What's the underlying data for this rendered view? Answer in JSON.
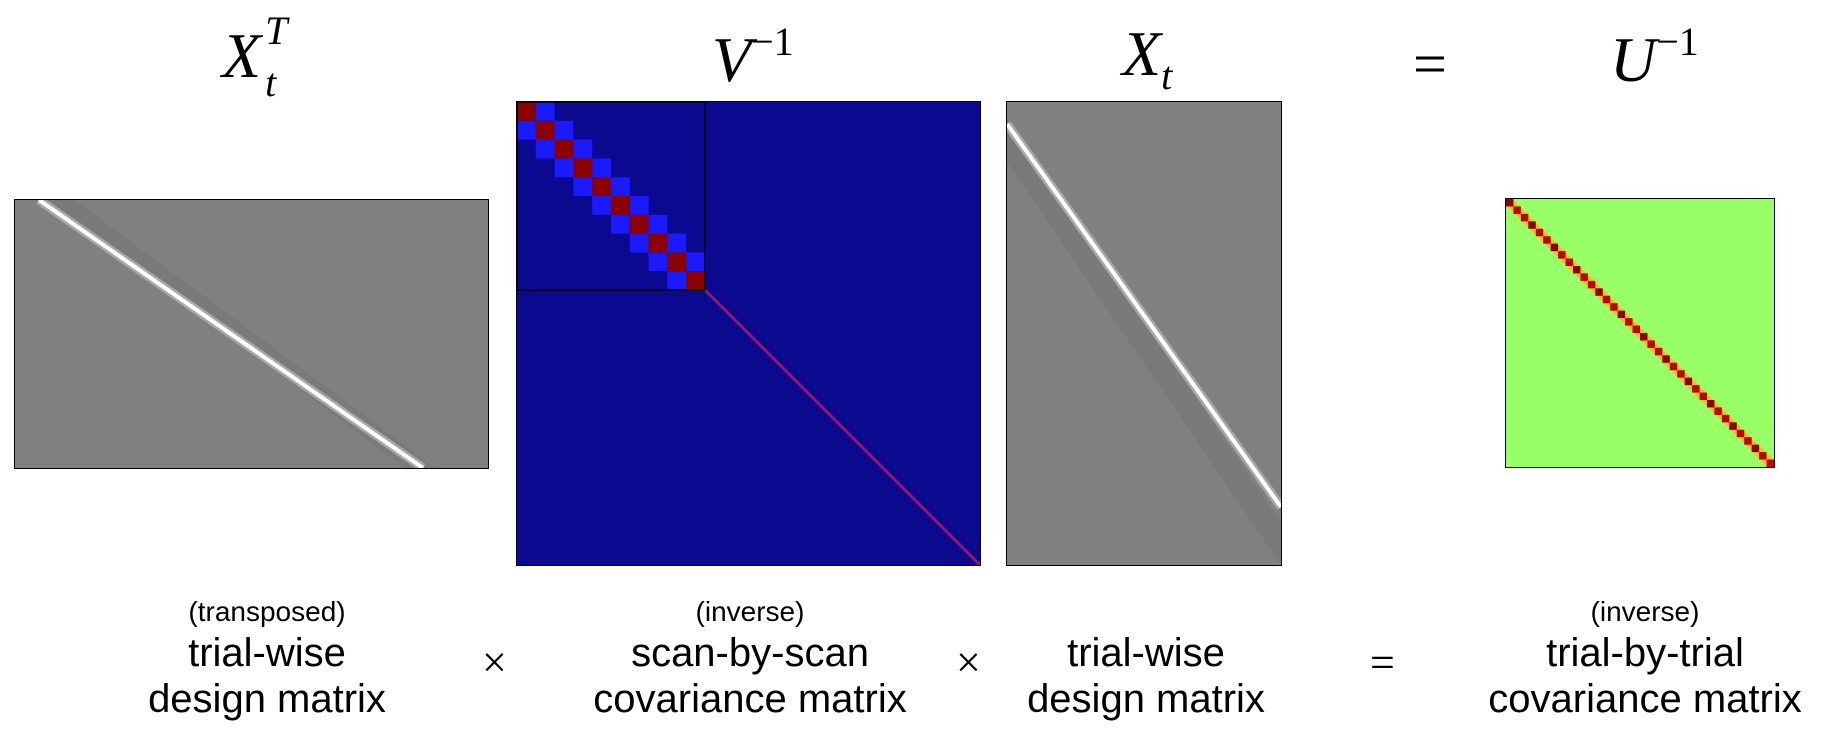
{
  "terms": [
    {
      "id": "xt_transposed",
      "base": "X",
      "sup": "T",
      "sub": "t"
    },
    {
      "id": "v_inverse",
      "base": "V",
      "sup": "−1",
      "sub": ""
    },
    {
      "id": "xt",
      "base": "X",
      "sup": "",
      "sub": "t"
    },
    {
      "id": "equals",
      "symbol": "="
    },
    {
      "id": "u_inverse",
      "base": "U",
      "sup": "−1",
      "sub": ""
    }
  ],
  "captions": [
    {
      "small": "(transposed)",
      "line1": "trial-wise",
      "line2": "design matrix"
    },
    {
      "small": "(inverse)",
      "line1": "scan-by-scan",
      "line2": "covariance matrix"
    },
    {
      "small": "",
      "line1": "trial-wise",
      "line2": "design matrix"
    },
    {
      "small": "(inverse)",
      "line1": "trial-by-trial",
      "line2": "covariance matrix"
    }
  ],
  "operators": [
    "×",
    "×",
    "="
  ],
  "colors": {
    "design_background": "#808080",
    "design_band": "#ffffff",
    "v_background": "#0c0991",
    "v_block_diag": "#8b0000",
    "v_block_offdiag": "#1a1aff",
    "u_background": "#99ff66",
    "u_diagonal": "#c00000"
  }
}
